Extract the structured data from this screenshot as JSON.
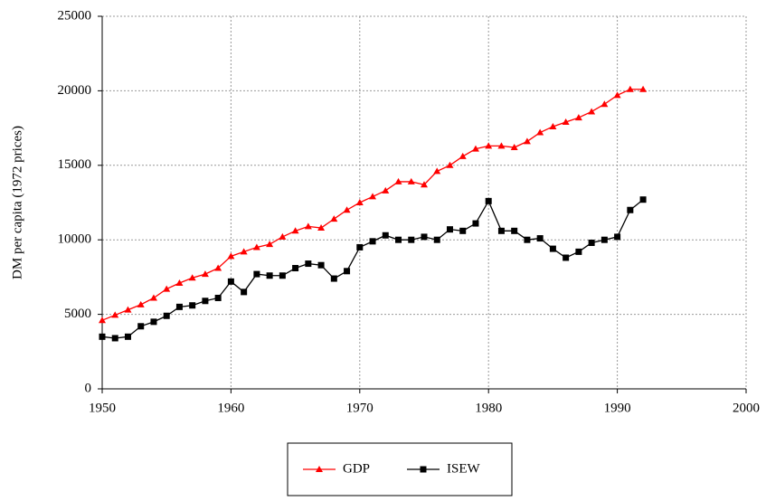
{
  "chart_data": {
    "type": "line",
    "y_label": "DM per capita (1972 prices)",
    "x": [
      1950,
      1951,
      1952,
      1953,
      1954,
      1955,
      1956,
      1957,
      1958,
      1959,
      1960,
      1961,
      1962,
      1963,
      1964,
      1965,
      1966,
      1967,
      1968,
      1969,
      1970,
      1971,
      1972,
      1973,
      1974,
      1975,
      1976,
      1977,
      1978,
      1979,
      1980,
      1981,
      1982,
      1983,
      1984,
      1985,
      1986,
      1987,
      1988,
      1989,
      1990,
      1991,
      1992
    ],
    "series": [
      {
        "name": "GDP",
        "color": "#ff0000",
        "marker": "triangle",
        "values": [
          4600,
          4950,
          5300,
          5650,
          6100,
          6700,
          7100,
          7450,
          7700,
          8100,
          8900,
          9200,
          9500,
          9700,
          10200,
          10600,
          10900,
          10800,
          11400,
          12000,
          12500,
          12900,
          13300,
          13900,
          13900,
          13700,
          14600,
          15000,
          15600,
          16100,
          16300,
          16300,
          16200,
          16600,
          17200,
          17600,
          17900,
          18200,
          18600,
          19100,
          19700,
          20100,
          20100
        ]
      },
      {
        "name": "ISEW",
        "color": "#000000",
        "marker": "square",
        "values": [
          3500,
          3400,
          3500,
          4200,
          4500,
          4900,
          5500,
          5600,
          5900,
          6100,
          7200,
          6500,
          7700,
          7600,
          7600,
          8100,
          8400,
          8300,
          7400,
          7900,
          9500,
          9900,
          10300,
          10000,
          10000,
          10200,
          10000,
          10700,
          10600,
          11100,
          12600,
          10600,
          10600,
          10000,
          10100,
          9400,
          8800,
          9200,
          9800,
          10000,
          10200,
          12000,
          12700
        ]
      }
    ],
    "xlim": [
      1950,
      2000
    ],
    "xticks": [
      1950,
      1960,
      1970,
      1980,
      1990,
      2000
    ],
    "ylim": [
      0,
      25000
    ],
    "yticks": [
      0,
      5000,
      10000,
      15000,
      20000,
      25000
    ],
    "grid": true,
    "legend": "bottom"
  }
}
